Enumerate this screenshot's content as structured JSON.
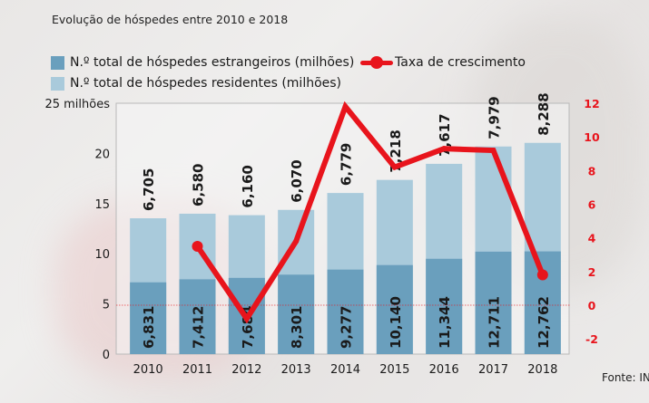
{
  "chart_data": {
    "type": "bar",
    "title": "Evolução de hóspedes entre 2010 e 2018",
    "categories": [
      "2010",
      "2011",
      "2012",
      "2013",
      "2014",
      "2015",
      "2016",
      "2017",
      "2018"
    ],
    "series": [
      {
        "name": "N.º total de hóspedes estrangeiros (milhões)",
        "type": "bar",
        "stack": "total",
        "color": "#6a9fbd",
        "values": [
          6.831,
          7.412,
          7.684,
          8.301,
          9.277,
          10.14,
          11.344,
          12.711,
          12.762
        ],
        "labels": [
          "6,831",
          "7,412",
          "7,684",
          "8,301",
          "9,277",
          "10,140",
          "11,344",
          "12,711",
          "12,762"
        ]
      },
      {
        "name": "N.º total de hóspedes residentes (milhões)",
        "type": "bar",
        "stack": "total",
        "color": "#a9cadb",
        "values": [
          6.705,
          6.58,
          6.16,
          6.07,
          6.779,
          7.218,
          7.617,
          7.979,
          8.288
        ],
        "labels": [
          "6,705",
          "6,580",
          "6,160",
          "6,070",
          "6,779",
          "7,218",
          "7,617",
          "7,979",
          "8,288"
        ]
      },
      {
        "name": "Taxa de crescimento",
        "type": "line",
        "axis": "right",
        "color": "#e8141c",
        "values": [
          null,
          3.5,
          -0.8,
          3.8,
          11.8,
          8.2,
          9.3,
          9.2,
          1.8
        ]
      }
    ],
    "left_axis": {
      "label": "25 milhões",
      "ylim": [
        0,
        25
      ],
      "ticks": [
        0,
        5,
        10,
        15,
        20,
        25
      ],
      "tick_labels": [
        "0",
        "5",
        "10",
        "15",
        "20",
        "25 milhões"
      ]
    },
    "right_axis": {
      "ylim": [
        -3,
        12
      ],
      "ticks": [
        -2,
        0,
        2,
        4,
        6,
        8,
        10,
        12
      ],
      "tick_labels": [
        "-2",
        "0",
        "2",
        "4",
        "6",
        "8",
        "10",
        "12"
      ],
      "color": "#e8141c"
    },
    "legend": [
      {
        "label": "N.º total de hóspedes estrangeiros (milhões)",
        "color": "#6a9fbd",
        "kind": "swatch"
      },
      {
        "label": "N.º total de hóspedes residentes (milhões)",
        "color": "#a9cadb",
        "kind": "swatch"
      },
      {
        "label": "Taxa de crescimento",
        "color": "#e8141c",
        "kind": "line"
      }
    ],
    "legend_placement": "top",
    "grid": false,
    "source": "Fonte: INE"
  }
}
